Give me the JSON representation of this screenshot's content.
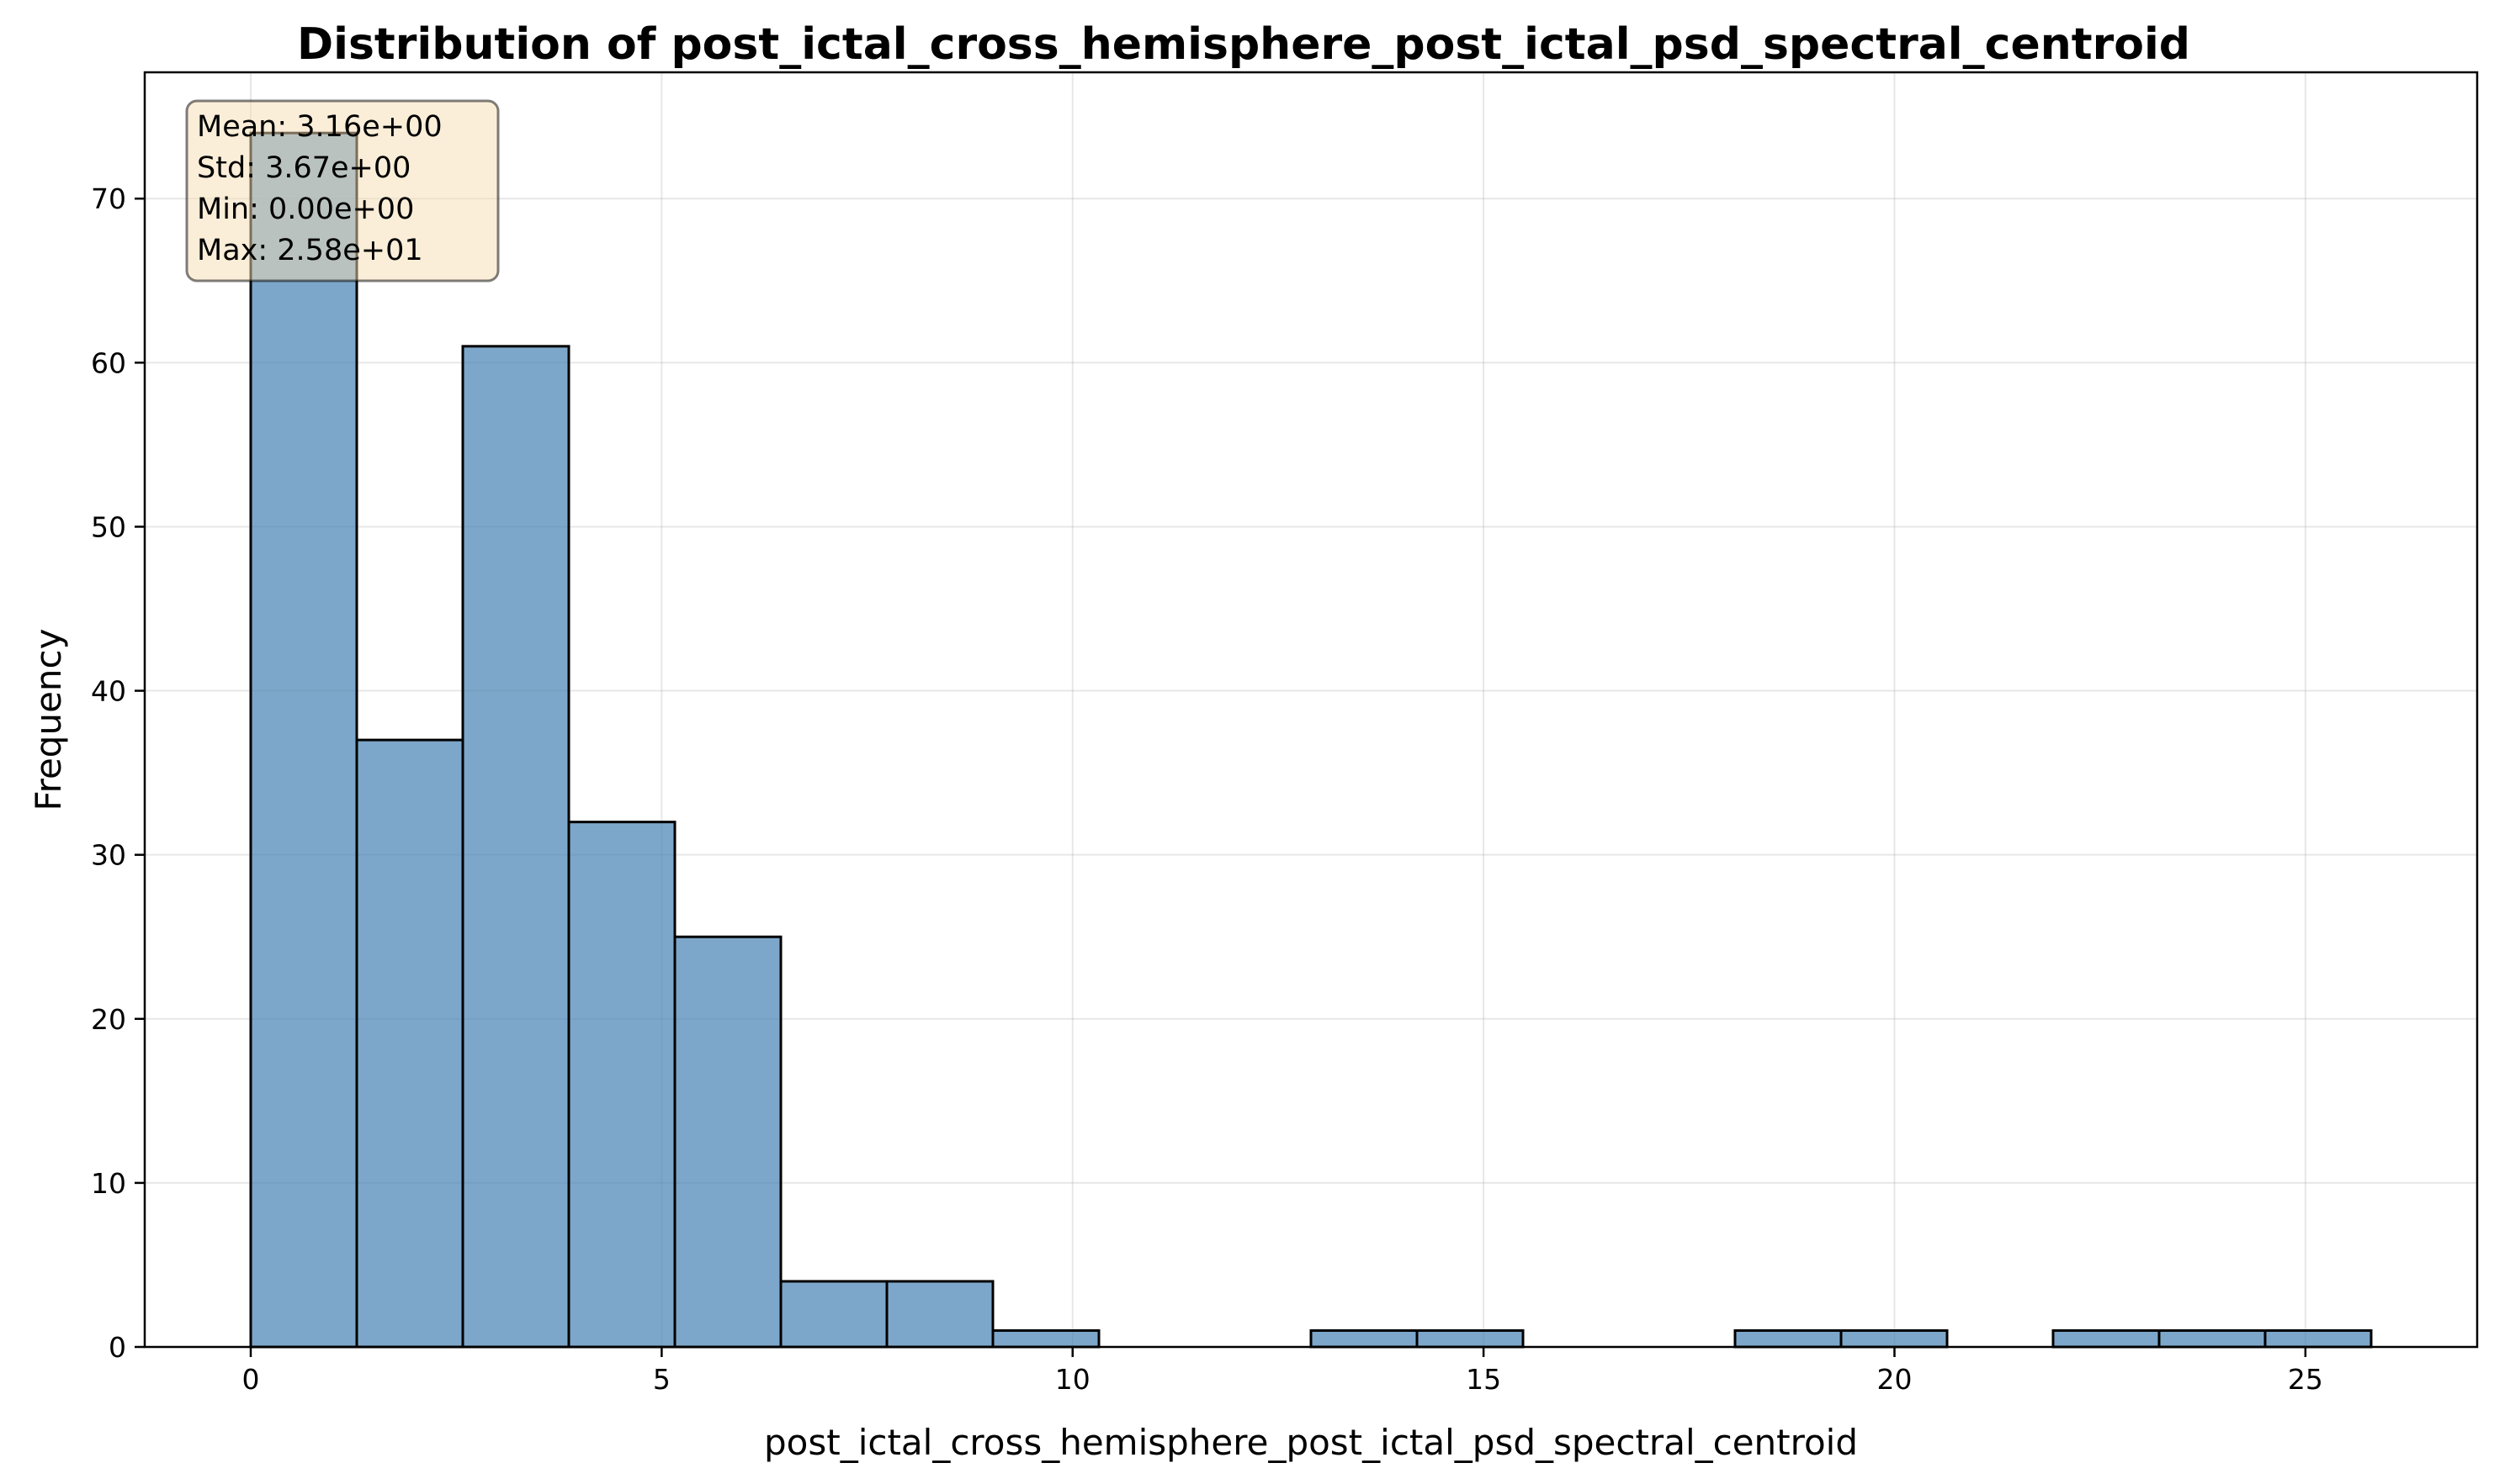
{
  "chart_data": {
    "type": "bar",
    "title": "Distribution of post_ictal_cross_hemisphere_post_ictal_psd_spectral_centroid",
    "xlabel": "post_ictal_cross_hemisphere_post_ictal_psd_spectral_centroid",
    "ylabel": "Frequency",
    "xlim": [
      -1.29,
      27.09
    ],
    "ylim": [
      0,
      77.7
    ],
    "xticks": [
      0,
      5,
      10,
      15,
      20,
      25
    ],
    "yticks": [
      0,
      10,
      20,
      30,
      40,
      50,
      60,
      70
    ],
    "grid": true,
    "bin_edges": [
      0,
      1.29,
      2.58,
      3.87,
      5.16,
      6.45,
      7.74,
      9.03,
      10.32,
      11.61,
      12.9,
      14.19,
      15.48,
      16.77,
      18.06,
      19.35,
      20.64,
      21.93,
      23.22,
      24.51,
      25.8
    ],
    "values": [
      74,
      37,
      61,
      32,
      25,
      4,
      4,
      1,
      0,
      0,
      1,
      1,
      0,
      0,
      1,
      1,
      0,
      1,
      1,
      1
    ],
    "colors": {
      "bar_fill": "#4682b4",
      "bar_edge": "#000000",
      "stats_box": "#f5deb3"
    },
    "stats_box": {
      "placement": "top-left",
      "lines": [
        "Mean: 3.16e+00",
        "Std: 3.67e+00",
        "Min: 0.00e+00",
        "Max: 2.58e+01"
      ]
    }
  }
}
